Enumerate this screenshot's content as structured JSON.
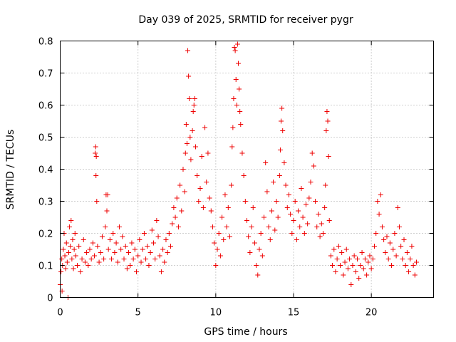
{
  "chart_data": {
    "type": "scatter",
    "title": "Day 039 of 2025, SRMTID for receiver pygr",
    "xlabel": "GPS time / hours",
    "ylabel": "SRMTID / TECUs",
    "xlim": [
      0,
      24
    ],
    "ylim": [
      0,
      0.8
    ],
    "grid": true,
    "marker": "+",
    "series_color": "#ee0000",
    "x_ticks": [
      {
        "value": 0,
        "label": "0"
      },
      {
        "value": 5,
        "label": "5"
      },
      {
        "value": 10,
        "label": "10"
      },
      {
        "value": 15,
        "label": "15"
      },
      {
        "value": 20,
        "label": "20"
      }
    ],
    "y_ticks": [
      {
        "value": 0,
        "label": "0"
      },
      {
        "value": 0.1,
        "label": "0.1"
      },
      {
        "value": 0.2,
        "label": "0.2"
      },
      {
        "value": 0.3,
        "label": "0.3"
      },
      {
        "value": 0.4,
        "label": "0.4"
      },
      {
        "value": 0.5,
        "label": "0.5"
      },
      {
        "value": 0.6,
        "label": "0.6"
      },
      {
        "value": 0.7,
        "label": "0.7"
      },
      {
        "value": 0.8,
        "label": "0.8"
      }
    ],
    "points": [
      [
        0.0,
        0.04
      ],
      [
        0.05,
        0.08
      ],
      [
        0.1,
        0.12
      ],
      [
        0.12,
        0.02
      ],
      [
        0.15,
        0.1
      ],
      [
        0.2,
        0.15
      ],
      [
        0.25,
        0.2
      ],
      [
        0.3,
        0.13
      ],
      [
        0.35,
        0.09
      ],
      [
        0.4,
        0.17
      ],
      [
        0.45,
        0.11
      ],
      [
        0.5,
        0.0
      ],
      [
        0.55,
        0.14
      ],
      [
        0.6,
        0.22
      ],
      [
        0.65,
        0.16
      ],
      [
        0.7,
        0.24
      ],
      [
        0.75,
        0.12
      ],
      [
        0.8,
        0.18
      ],
      [
        0.85,
        0.09
      ],
      [
        0.9,
        0.15
      ],
      [
        0.95,
        0.2
      ],
      [
        1.0,
        0.13
      ],
      [
        1.1,
        0.1
      ],
      [
        1.2,
        0.16
      ],
      [
        1.3,
        0.08
      ],
      [
        1.4,
        0.12
      ],
      [
        1.5,
        0.18
      ],
      [
        1.6,
        0.11
      ],
      [
        1.7,
        0.14
      ],
      [
        1.8,
        0.1
      ],
      [
        1.9,
        0.15
      ],
      [
        2.0,
        0.12
      ],
      [
        2.1,
        0.17
      ],
      [
        2.2,
        0.13
      ],
      [
        2.25,
        0.45
      ],
      [
        2.28,
        0.47
      ],
      [
        2.3,
        0.38
      ],
      [
        2.32,
        0.44
      ],
      [
        2.35,
        0.3
      ],
      [
        2.4,
        0.16
      ],
      [
        2.5,
        0.11
      ],
      [
        2.6,
        0.14
      ],
      [
        2.7,
        0.19
      ],
      [
        2.8,
        0.12
      ],
      [
        2.9,
        0.22
      ],
      [
        2.95,
        0.32
      ],
      [
        3.0,
        0.27
      ],
      [
        3.05,
        0.32
      ],
      [
        3.1,
        0.15
      ],
      [
        3.2,
        0.18
      ],
      [
        3.3,
        0.12
      ],
      [
        3.4,
        0.2
      ],
      [
        3.5,
        0.14
      ],
      [
        3.6,
        0.17
      ],
      [
        3.7,
        0.11
      ],
      [
        3.8,
        0.22
      ],
      [
        3.9,
        0.15
      ],
      [
        4.0,
        0.19
      ],
      [
        4.1,
        0.12
      ],
      [
        4.2,
        0.16
      ],
      [
        4.3,
        0.09
      ],
      [
        4.4,
        0.14
      ],
      [
        4.5,
        0.1
      ],
      [
        4.6,
        0.17
      ],
      [
        4.7,
        0.12
      ],
      [
        4.8,
        0.15
      ],
      [
        4.9,
        0.08
      ],
      [
        5.0,
        0.13
      ],
      [
        5.1,
        0.18
      ],
      [
        5.2,
        0.11
      ],
      [
        5.3,
        0.15
      ],
      [
        5.4,
        0.2
      ],
      [
        5.5,
        0.12
      ],
      [
        5.6,
        0.16
      ],
      [
        5.7,
        0.1
      ],
      [
        5.8,
        0.14
      ],
      [
        5.9,
        0.21
      ],
      [
        6.0,
        0.17
      ],
      [
        6.1,
        0.12
      ],
      [
        6.2,
        0.24
      ],
      [
        6.3,
        0.19
      ],
      [
        6.4,
        0.13
      ],
      [
        6.5,
        0.08
      ],
      [
        6.6,
        0.15
      ],
      [
        6.7,
        0.11
      ],
      [
        6.8,
        0.18
      ],
      [
        6.9,
        0.14
      ],
      [
        7.0,
        0.2
      ],
      [
        7.1,
        0.16
      ],
      [
        7.2,
        0.23
      ],
      [
        7.3,
        0.28
      ],
      [
        7.4,
        0.25
      ],
      [
        7.5,
        0.31
      ],
      [
        7.6,
        0.22
      ],
      [
        7.7,
        0.35
      ],
      [
        7.8,
        0.27
      ],
      [
        7.9,
        0.4
      ],
      [
        8.0,
        0.33
      ],
      [
        8.05,
        0.45
      ],
      [
        8.1,
        0.54
      ],
      [
        8.15,
        0.48
      ],
      [
        8.2,
        0.77
      ],
      [
        8.25,
        0.69
      ],
      [
        8.3,
        0.62
      ],
      [
        8.35,
        0.5
      ],
      [
        8.4,
        0.43
      ],
      [
        8.5,
        0.52
      ],
      [
        8.55,
        0.58
      ],
      [
        8.6,
        0.6
      ],
      [
        8.65,
        0.62
      ],
      [
        8.7,
        0.47
      ],
      [
        8.8,
        0.38
      ],
      [
        8.9,
        0.3
      ],
      [
        9.0,
        0.34
      ],
      [
        9.1,
        0.44
      ],
      [
        9.2,
        0.28
      ],
      [
        9.3,
        0.53
      ],
      [
        9.4,
        0.36
      ],
      [
        9.5,
        0.45
      ],
      [
        9.6,
        0.31
      ],
      [
        9.7,
        0.27
      ],
      [
        9.8,
        0.22
      ],
      [
        9.9,
        0.17
      ],
      [
        10.0,
        0.1
      ],
      [
        10.1,
        0.15
      ],
      [
        10.2,
        0.2
      ],
      [
        10.3,
        0.13
      ],
      [
        10.4,
        0.25
      ],
      [
        10.5,
        0.18
      ],
      [
        10.6,
        0.32
      ],
      [
        10.7,
        0.22
      ],
      [
        10.8,
        0.28
      ],
      [
        10.9,
        0.19
      ],
      [
        11.0,
        0.35
      ],
      [
        11.05,
        0.47
      ],
      [
        11.1,
        0.53
      ],
      [
        11.15,
        0.62
      ],
      [
        11.2,
        0.78
      ],
      [
        11.25,
        0.77
      ],
      [
        11.3,
        0.68
      ],
      [
        11.35,
        0.6
      ],
      [
        11.4,
        0.79
      ],
      [
        11.45,
        0.73
      ],
      [
        11.5,
        0.65
      ],
      [
        11.55,
        0.58
      ],
      [
        11.6,
        0.54
      ],
      [
        11.7,
        0.45
      ],
      [
        11.8,
        0.38
      ],
      [
        11.9,
        0.3
      ],
      [
        12.0,
        0.24
      ],
      [
        12.1,
        0.19
      ],
      [
        12.2,
        0.14
      ],
      [
        12.3,
        0.22
      ],
      [
        12.4,
        0.28
      ],
      [
        12.5,
        0.17
      ],
      [
        12.6,
        0.1
      ],
      [
        12.7,
        0.07
      ],
      [
        12.8,
        0.15
      ],
      [
        12.9,
        0.2
      ],
      [
        13.0,
        0.13
      ],
      [
        13.1,
        0.25
      ],
      [
        13.2,
        0.42
      ],
      [
        13.3,
        0.33
      ],
      [
        13.4,
        0.22
      ],
      [
        13.5,
        0.18
      ],
      [
        13.6,
        0.27
      ],
      [
        13.7,
        0.36
      ],
      [
        13.8,
        0.21
      ],
      [
        13.9,
        0.3
      ],
      [
        14.0,
        0.25
      ],
      [
        14.1,
        0.38
      ],
      [
        14.15,
        0.46
      ],
      [
        14.2,
        0.55
      ],
      [
        14.25,
        0.59
      ],
      [
        14.3,
        0.52
      ],
      [
        14.4,
        0.42
      ],
      [
        14.5,
        0.35
      ],
      [
        14.6,
        0.28
      ],
      [
        14.7,
        0.32
      ],
      [
        14.8,
        0.26
      ],
      [
        14.9,
        0.2
      ],
      [
        15.0,
        0.24
      ],
      [
        15.1,
        0.3
      ],
      [
        15.2,
        0.18
      ],
      [
        15.3,
        0.27
      ],
      [
        15.4,
        0.22
      ],
      [
        15.5,
        0.34
      ],
      [
        15.6,
        0.25
      ],
      [
        15.7,
        0.2
      ],
      [
        15.8,
        0.29
      ],
      [
        15.9,
        0.23
      ],
      [
        16.0,
        0.31
      ],
      [
        16.1,
        0.36
      ],
      [
        16.2,
        0.45
      ],
      [
        16.3,
        0.41
      ],
      [
        16.4,
        0.3
      ],
      [
        16.5,
        0.22
      ],
      [
        16.6,
        0.26
      ],
      [
        16.7,
        0.19
      ],
      [
        16.8,
        0.23
      ],
      [
        16.9,
        0.2
      ],
      [
        17.0,
        0.28
      ],
      [
        17.05,
        0.35
      ],
      [
        17.1,
        0.52
      ],
      [
        17.15,
        0.58
      ],
      [
        17.2,
        0.55
      ],
      [
        17.25,
        0.44
      ],
      [
        17.3,
        0.24
      ],
      [
        17.4,
        0.13
      ],
      [
        17.5,
        0.1
      ],
      [
        17.6,
        0.15
      ],
      [
        17.7,
        0.08
      ],
      [
        17.8,
        0.12
      ],
      [
        17.9,
        0.16
      ],
      [
        18.0,
        0.1
      ],
      [
        18.1,
        0.14
      ],
      [
        18.2,
        0.07
      ],
      [
        18.3,
        0.11
      ],
      [
        18.4,
        0.15
      ],
      [
        18.5,
        0.09
      ],
      [
        18.6,
        0.12
      ],
      [
        18.7,
        0.04
      ],
      [
        18.8,
        0.1
      ],
      [
        18.9,
        0.13
      ],
      [
        19.0,
        0.08
      ],
      [
        19.1,
        0.12
      ],
      [
        19.2,
        0.06
      ],
      [
        19.3,
        0.1
      ],
      [
        19.4,
        0.14
      ],
      [
        19.5,
        0.09
      ],
      [
        19.6,
        0.12
      ],
      [
        19.7,
        0.07
      ],
      [
        19.8,
        0.11
      ],
      [
        19.9,
        0.13
      ],
      [
        20.0,
        0.09
      ],
      [
        20.1,
        0.12
      ],
      [
        20.2,
        0.16
      ],
      [
        20.3,
        0.2
      ],
      [
        20.4,
        0.3
      ],
      [
        20.5,
        0.26
      ],
      [
        20.6,
        0.32
      ],
      [
        20.7,
        0.22
      ],
      [
        20.8,
        0.18
      ],
      [
        20.9,
        0.14
      ],
      [
        21.0,
        0.19
      ],
      [
        21.1,
        0.12
      ],
      [
        21.2,
        0.17
      ],
      [
        21.3,
        0.1
      ],
      [
        21.4,
        0.15
      ],
      [
        21.5,
        0.2
      ],
      [
        21.6,
        0.13
      ],
      [
        21.7,
        0.28
      ],
      [
        21.8,
        0.22
      ],
      [
        21.9,
        0.16
      ],
      [
        22.0,
        0.12
      ],
      [
        22.1,
        0.18
      ],
      [
        22.2,
        0.1
      ],
      [
        22.3,
        0.14
      ],
      [
        22.4,
        0.08
      ],
      [
        22.5,
        0.12
      ],
      [
        22.6,
        0.16
      ],
      [
        22.7,
        0.1
      ],
      [
        22.8,
        0.07
      ],
      [
        22.9,
        0.11
      ]
    ]
  }
}
